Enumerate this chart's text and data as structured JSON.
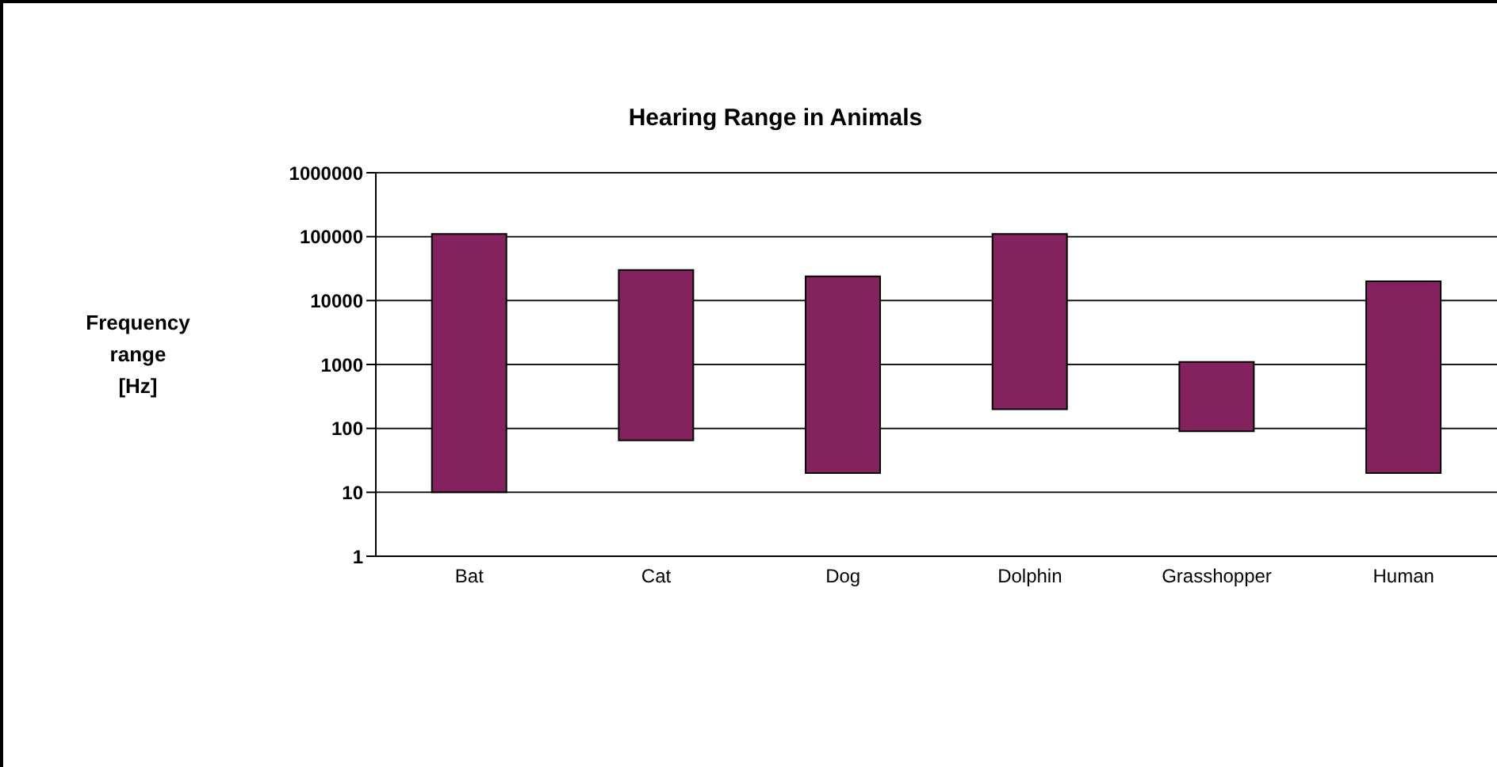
{
  "chart_data": {
    "type": "bar",
    "title": "Hearing Range in Animals",
    "ylabel": "Frequency range [Hz]",
    "categories": [
      "Bat",
      "Cat",
      "Dog",
      "Dolphin",
      "Grasshopper",
      "Human"
    ],
    "base": [
      10,
      65,
      20,
      200,
      90,
      20
    ],
    "values": [
      109990,
      29935,
      23980,
      109800,
      1010,
      19980
    ],
    "color": "#84215f",
    "log": true,
    "ylim": [
      1,
      1000000
    ],
    "yticks": [
      1,
      10,
      100,
      1000,
      10000,
      100000,
      1000000
    ],
    "grid": "y"
  }
}
